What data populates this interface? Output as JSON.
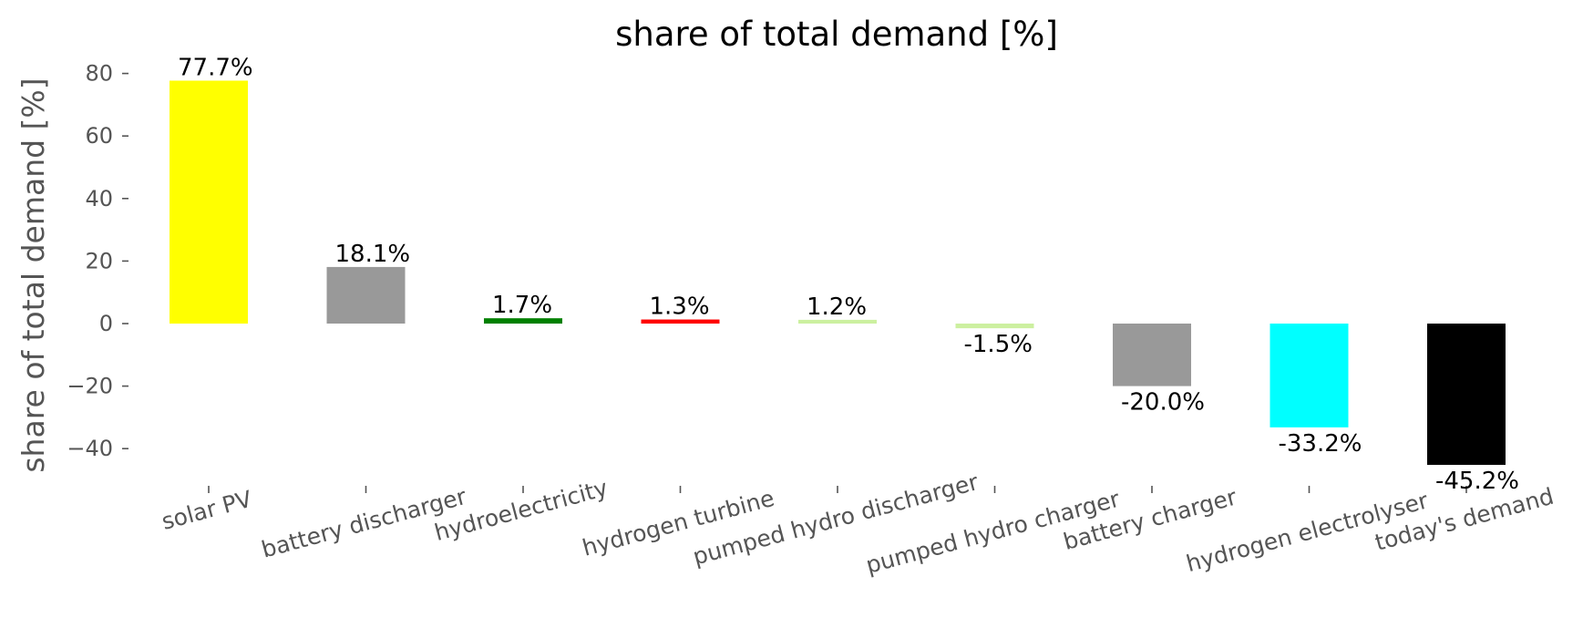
{
  "chart_data": {
    "type": "bar",
    "title": "share of total demand [%]",
    "ylabel": "share of total demand [%]",
    "xlabel": "",
    "ylim": [
      -52,
      86
    ],
    "yticks": [
      80,
      60,
      40,
      20,
      0,
      -20,
      -40
    ],
    "ytick_labels": [
      "80",
      "60",
      "40",
      "20",
      "0",
      "−20",
      "−40"
    ],
    "grid": false,
    "categories": [
      "solar PV",
      "battery discharger",
      "hydroelectricity",
      "hydrogen turbine",
      "pumped hydro discharger",
      "pumped hydro charger",
      "battery charger",
      "hydrogen electrolyser",
      "today's demand"
    ],
    "values": [
      77.7,
      18.1,
      1.7,
      1.3,
      1.2,
      -1.5,
      -20.0,
      -33.2,
      -45.2
    ],
    "data_labels": [
      "77.7%",
      "18.1%",
      "1.7%",
      "1.3%",
      "1.2%",
      "-1.5%",
      "-20.0%",
      "-33.2%",
      "-45.2%"
    ],
    "colors": [
      "#ffff00",
      "#999999",
      "#008000",
      "#ff0000",
      "#ccf0a0",
      "#ccf0a0",
      "#999999",
      "#00ffff",
      "#000000"
    ]
  }
}
